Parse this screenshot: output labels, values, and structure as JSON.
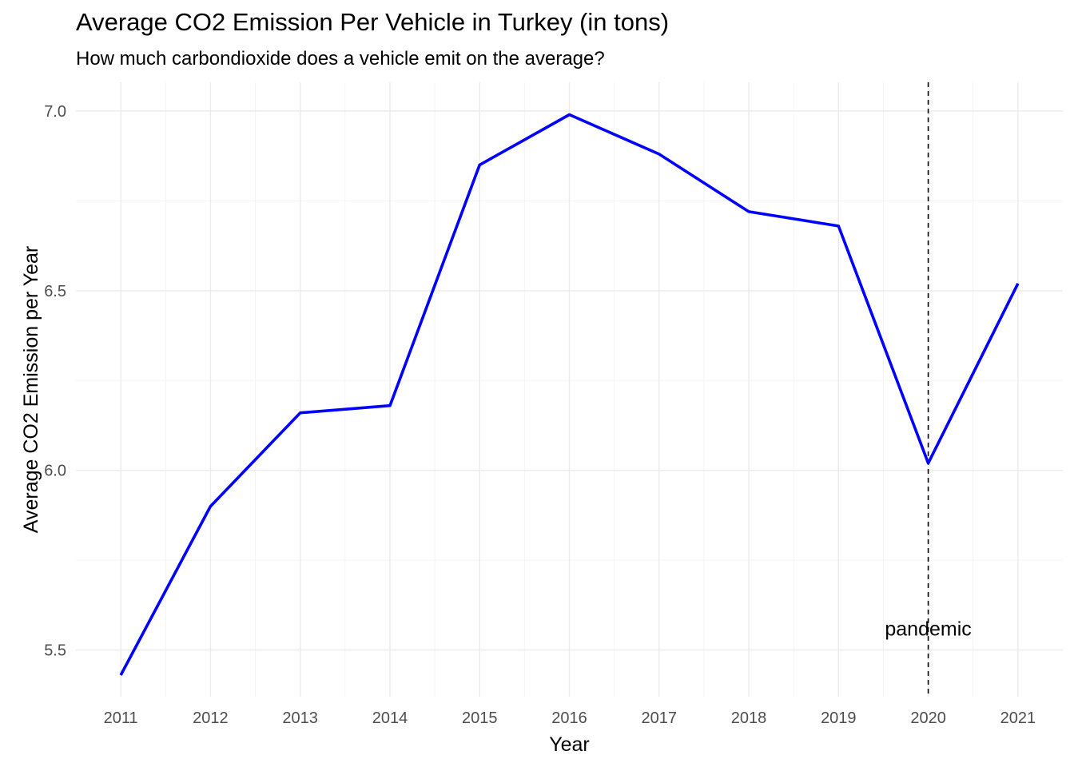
{
  "chart_data": {
    "type": "line",
    "title": "Average CO2 Emission Per Vehicle in Turkey (in tons)",
    "subtitle": "How much carbondioxide does a vehicle emit on the average?",
    "xlabel": "Year",
    "ylabel": "Average CO2 Emission per Year",
    "x": [
      2011,
      2012,
      2013,
      2014,
      2015,
      2016,
      2017,
      2018,
      2019,
      2020,
      2021
    ],
    "series": [
      {
        "values": [
          5.43,
          5.9,
          6.16,
          6.18,
          6.85,
          6.99,
          6.88,
          6.72,
          6.68,
          6.02,
          6.52
        ],
        "color": "#0000ff"
      }
    ],
    "xlim": [
      2010.5,
      2021.5
    ],
    "ylim": [
      5.37,
      7.08
    ],
    "x_ticks": [
      "2011",
      "2012",
      "2013",
      "2014",
      "2015",
      "2016",
      "2017",
      "2018",
      "2019",
      "2020",
      "2021"
    ],
    "y_ticks": [
      "5.5",
      "6.0",
      "6.5",
      "7.0"
    ],
    "grid": true,
    "annotations": [
      {
        "type": "vline",
        "x": 2020,
        "style": "dashed",
        "color": "#000000"
      },
      {
        "type": "text",
        "x": 2020,
        "y": 5.56,
        "text": "pandemic"
      }
    ]
  }
}
